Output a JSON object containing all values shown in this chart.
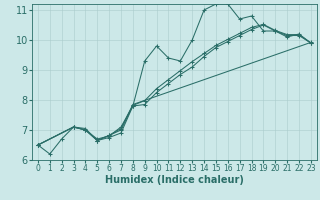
{
  "title": "",
  "xlabel": "Humidex (Indice chaleur)",
  "xlim": [
    -0.5,
    23.5
  ],
  "ylim": [
    6,
    11.2
  ],
  "xticks": [
    0,
    1,
    2,
    3,
    4,
    5,
    6,
    7,
    8,
    9,
    10,
    11,
    12,
    13,
    14,
    15,
    16,
    17,
    18,
    19,
    20,
    21,
    22,
    23
  ],
  "yticks": [
    6,
    7,
    8,
    9,
    10,
    11
  ],
  "bg_color": "#cce8e8",
  "line_color": "#2a6e68",
  "grid_color": "#aacccc",
  "lines": [
    {
      "x": [
        0,
        1,
        2,
        3,
        4,
        5,
        6,
        7,
        8,
        9,
        10,
        11,
        12,
        13,
        14,
        15,
        16,
        17,
        18,
        19,
        20,
        21,
        22,
        23
      ],
      "y": [
        6.5,
        6.2,
        6.7,
        7.1,
        7.0,
        6.7,
        6.8,
        7.1,
        7.8,
        9.3,
        9.8,
        9.4,
        9.3,
        10.0,
        11.0,
        11.2,
        11.2,
        10.7,
        10.8,
        10.3,
        10.3,
        10.1,
        10.2,
        9.9
      ]
    },
    {
      "x": [
        0,
        3,
        4,
        5,
        6,
        7,
        8,
        9,
        10,
        11,
        12,
        13,
        14,
        15,
        16,
        17,
        18,
        19,
        20,
        21,
        22,
        23
      ],
      "y": [
        6.5,
        7.1,
        7.0,
        6.65,
        6.75,
        6.9,
        7.8,
        7.85,
        8.25,
        8.55,
        8.85,
        9.1,
        9.45,
        9.75,
        9.95,
        10.15,
        10.35,
        10.5,
        10.3,
        10.15,
        10.15,
        9.9
      ]
    },
    {
      "x": [
        0,
        3,
        4,
        5,
        6,
        7,
        8,
        9,
        10,
        11,
        12,
        13,
        14,
        15,
        16,
        17,
        18,
        19,
        20,
        21,
        22,
        23
      ],
      "y": [
        6.5,
        7.1,
        7.0,
        6.65,
        6.82,
        7.0,
        7.82,
        7.98,
        8.38,
        8.68,
        8.98,
        9.28,
        9.55,
        9.82,
        10.02,
        10.22,
        10.42,
        10.52,
        10.32,
        10.18,
        10.18,
        9.9
      ]
    },
    {
      "x": [
        0,
        3,
        4,
        5,
        6,
        7,
        8,
        23
      ],
      "y": [
        6.5,
        7.1,
        7.05,
        6.65,
        6.82,
        7.05,
        7.85,
        9.92
      ]
    }
  ],
  "xlabel_fontsize": 7,
  "xlabel_fontweight": "bold",
  "tick_fontsize": 5.5,
  "ytick_fontsize": 7
}
